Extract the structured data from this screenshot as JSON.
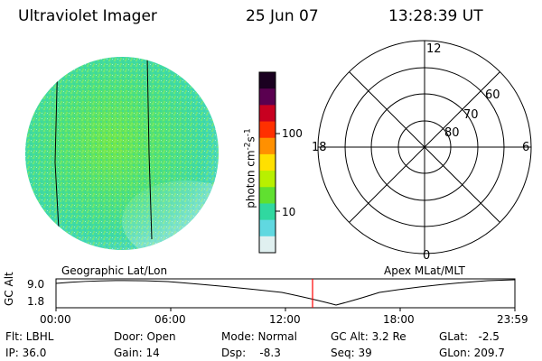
{
  "header": {
    "instrument": "Ultraviolet Imager",
    "date": "25 Jun 07",
    "time": "13:28:39 UT"
  },
  "colorbar": {
    "label_parts": [
      "photon cm",
      "-2",
      "s",
      "-1"
    ],
    "ticks": [
      {
        "label": "100",
        "value": 100
      },
      {
        "label": "10",
        "value": 10
      }
    ],
    "colors": [
      "#1a0020",
      "#5a0050",
      "#c80020",
      "#ff3000",
      "#ff9000",
      "#ffe000",
      "#b8f000",
      "#60e030",
      "#30d8a0",
      "#60d8e0",
      "#e0f0f0"
    ]
  },
  "polar_grid": {
    "ring_labels": [
      "80",
      "70",
      "60"
    ],
    "mlt_labels": [
      "12",
      "18",
      "6",
      "0"
    ]
  },
  "labels": {
    "left_frame": "Geographic Lat/Lon",
    "right_frame": "Apex MLat/MLT"
  },
  "altitude_plot": {
    "ylabel": "GC Alt",
    "y_ticks": [
      "9.0",
      "1.8"
    ],
    "x_ticks": [
      "00:00",
      "06:00",
      "12:00",
      "18:00",
      "23:59"
    ],
    "marker_time": "13:28:39",
    "marker_color": "#ff0000"
  },
  "status": {
    "filter": "Flt: LBHL",
    "ip": "IP: 36.0",
    "door": "Door: Open",
    "gain": "Gain: 14",
    "mode": "Mode: Normal",
    "dsp": "Dsp:    -8.3",
    "gc_alt": "GC Alt: 3.2 Re",
    "seq": "Seq: 39",
    "glat": "GLat:   -2.5",
    "glon": "GLon: 209.7"
  }
}
